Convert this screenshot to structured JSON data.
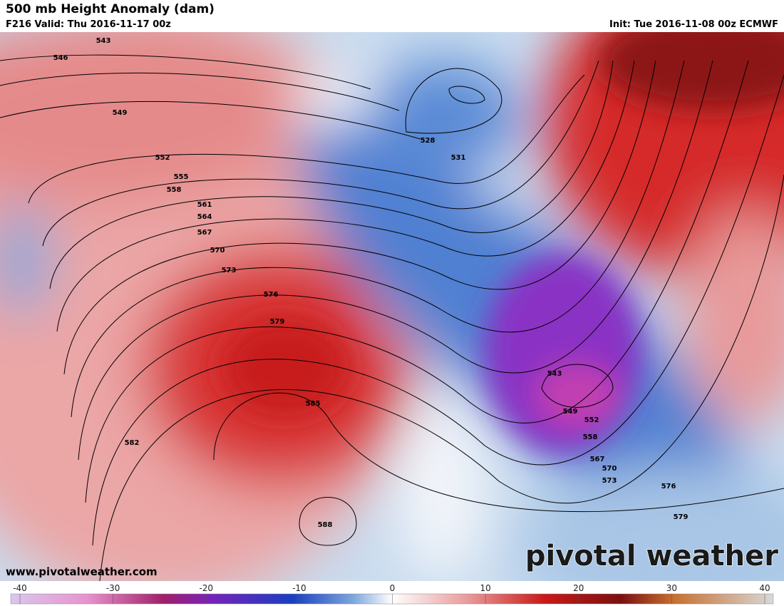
{
  "header": {
    "title": "500 mb Height Anomaly (dam)",
    "valid": "F216 Valid: Thu 2016-11-17 00z",
    "init": "Init: Tue 2016-11-08 00z ECMWF"
  },
  "map": {
    "contour_labels": [
      543,
      546,
      549,
      552,
      555,
      558,
      561,
      564,
      567,
      570,
      573,
      576,
      579,
      585,
      582,
      588,
      528,
      531,
      543,
      549,
      552,
      558,
      567,
      570,
      573,
      576,
      579
    ]
  },
  "watermark": "www.pivotalweather.com",
  "brand": "pivotal weather",
  "colorbar": {
    "ticks": [
      -40,
      -30,
      -20,
      -10,
      0,
      10,
      20,
      30,
      40
    ]
  }
}
